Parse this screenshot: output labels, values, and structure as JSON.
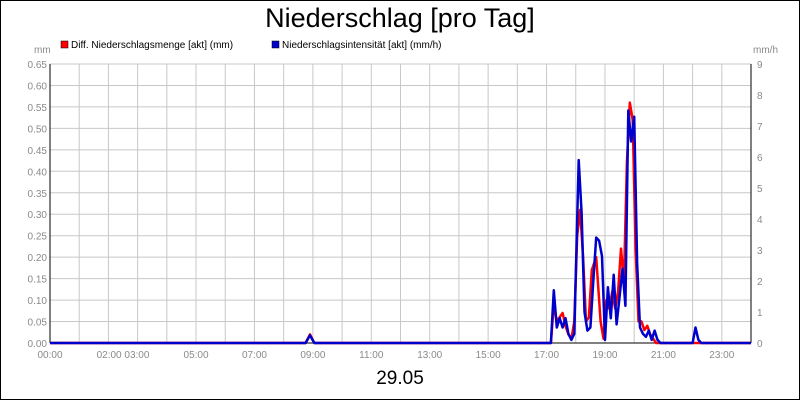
{
  "chart_data": {
    "type": "line",
    "title": "Niederschlag [pro Tag]",
    "date": "29.05",
    "left_unit": "mm",
    "right_unit": "mm/h",
    "grid": true,
    "legend_position": "top-left",
    "x_tick_labels": [
      "00:00",
      "02:00 03:00",
      "05:00",
      "07:00",
      "09:00",
      "11:00",
      "13:00",
      "15:00",
      "17:00",
      "19:00",
      "21:00",
      "23:00"
    ],
    "y_left": {
      "min": 0,
      "max": 0.65,
      "ticks": [
        "0.00",
        "0.05",
        "0.10",
        "0.15",
        "0.20",
        "0.25",
        "0.30",
        "0.35",
        "0.40",
        "0.45",
        "0.50",
        "0.55",
        "0.60",
        "0.65"
      ]
    },
    "y_right": {
      "min": 0,
      "max": 9,
      "ticks": [
        "0",
        "1",
        "2",
        "3",
        "4",
        "5",
        "6",
        "7",
        "8",
        "9"
      ]
    },
    "series": [
      {
        "name": "Diff. Niederschlagsmenge [akt] (mm)",
        "color": "#ff0000",
        "axis": "left",
        "x_hours": [
          0,
          8.75,
          8.9,
          9.05,
          17.15,
          17.25,
          17.35,
          17.45,
          17.55,
          17.65,
          17.75,
          17.85,
          17.95,
          18.05,
          18.15,
          18.25,
          18.35,
          18.45,
          18.55,
          18.7,
          18.85,
          18.95,
          19.05,
          19.15,
          19.25,
          19.35,
          19.45,
          19.55,
          19.65,
          19.75,
          19.85,
          19.95,
          20.05,
          20.15,
          20.25,
          20.35,
          20.45,
          20.55,
          20.65,
          20.75,
          24
        ],
        "values": [
          0,
          0,
          0.02,
          0,
          0,
          0.09,
          0.05,
          0.06,
          0.07,
          0.04,
          0.02,
          0.01,
          0.05,
          0.25,
          0.31,
          0.2,
          0.05,
          0.06,
          0.17,
          0.2,
          0.05,
          0.01,
          0.1,
          0.08,
          0.12,
          0.08,
          0.12,
          0.22,
          0.14,
          0.42,
          0.56,
          0.52,
          0.22,
          0.05,
          0.05,
          0.03,
          0.04,
          0.02,
          0.01,
          0,
          0
        ]
      },
      {
        "name": "Niederschlagsintensität [akt] (mm/h)",
        "color": "#0000cc",
        "axis": "right",
        "x_hours": [
          0,
          8.75,
          8.9,
          9.05,
          17.15,
          17.25,
          17.35,
          17.45,
          17.55,
          17.65,
          17.75,
          17.85,
          17.95,
          18.1,
          18.2,
          18.3,
          18.4,
          18.5,
          18.6,
          18.7,
          18.8,
          18.9,
          19.0,
          19.1,
          19.2,
          19.3,
          19.4,
          19.5,
          19.6,
          19.7,
          19.8,
          19.9,
          20.0,
          20.1,
          20.2,
          20.3,
          20.4,
          20.5,
          20.6,
          20.7,
          20.8,
          20.9,
          22.0,
          22.1,
          22.2,
          22.3,
          24
        ],
        "values": [
          0,
          0,
          0.25,
          0,
          0,
          1.7,
          0.5,
          0.8,
          0.5,
          0.8,
          0.3,
          0.1,
          0.3,
          5.9,
          4.2,
          1.0,
          0.4,
          0.5,
          2.0,
          3.4,
          3.3,
          2.8,
          0.1,
          1.8,
          0.8,
          2.2,
          0.6,
          1.5,
          2.4,
          1.2,
          7.5,
          6.5,
          7.3,
          2.6,
          0.5,
          0.3,
          0.2,
          0.4,
          0.1,
          0.4,
          0.1,
          0,
          0,
          0.5,
          0.1,
          0,
          0
        ]
      }
    ]
  }
}
